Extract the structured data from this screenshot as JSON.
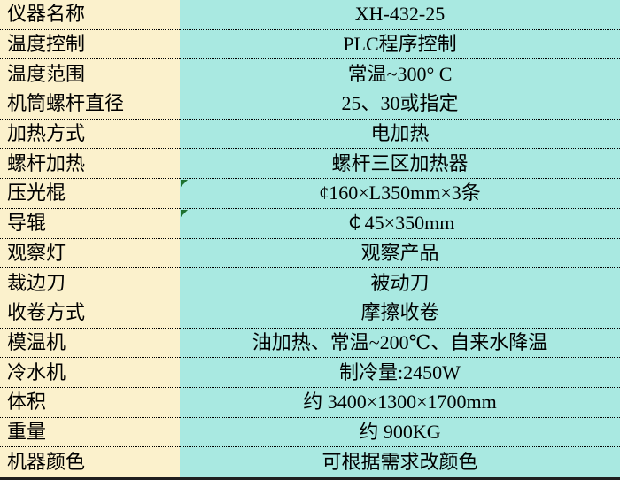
{
  "table": {
    "columns": [
      "parameter",
      "value"
    ],
    "rows": [
      {
        "label": "仪器名称",
        "value": "XH-432-25",
        "indicator": false
      },
      {
        "label": "温度控制",
        "value": "PLC程序控制",
        "indicator": false
      },
      {
        "label": "温度范围",
        "value": "常温~300° C",
        "indicator": false
      },
      {
        "label": "机筒螺杆直径",
        "value": "25、30或指定",
        "indicator": false
      },
      {
        "label": "加热方式",
        "value": "电加热",
        "indicator": false
      },
      {
        "label": "螺杆加热",
        "value": "螺杆三区加热器",
        "indicator": false
      },
      {
        "label": "压光棍",
        "value": "¢160×L350mm×3条",
        "indicator": true
      },
      {
        "label": "导辊",
        "value": "￠45×350mm",
        "indicator": true
      },
      {
        "label": "观察灯",
        "value": "观察产品",
        "indicator": false
      },
      {
        "label": "裁边刀",
        "value": "被动刀",
        "indicator": false
      },
      {
        "label": "收卷方式",
        "value": "摩擦收卷",
        "indicator": false
      },
      {
        "label": "模温机",
        "value": "油加热、常温~200℃、自来水降温",
        "indicator": false
      },
      {
        "label": "冷水机",
        "value": "制冷量:2450W",
        "indicator": false
      },
      {
        "label": "体积",
        "value": "约 3400×1300×1700mm",
        "indicator": false
      },
      {
        "label": "重量",
        "value": "约 900KG",
        "indicator": false
      },
      {
        "label": "机器颜色",
        "value": "可根据需求改颜色",
        "indicator": false
      }
    ]
  },
  "colors": {
    "label_bg": "#FBF1CC",
    "value_bg": "#A9E9E1",
    "grid_line": "#000000",
    "indicator": "#1E7230",
    "bottom_border": "#1F1F1F",
    "text": "#000000"
  },
  "icons": {
    "error_indicator": "green-corner-triangle"
  }
}
